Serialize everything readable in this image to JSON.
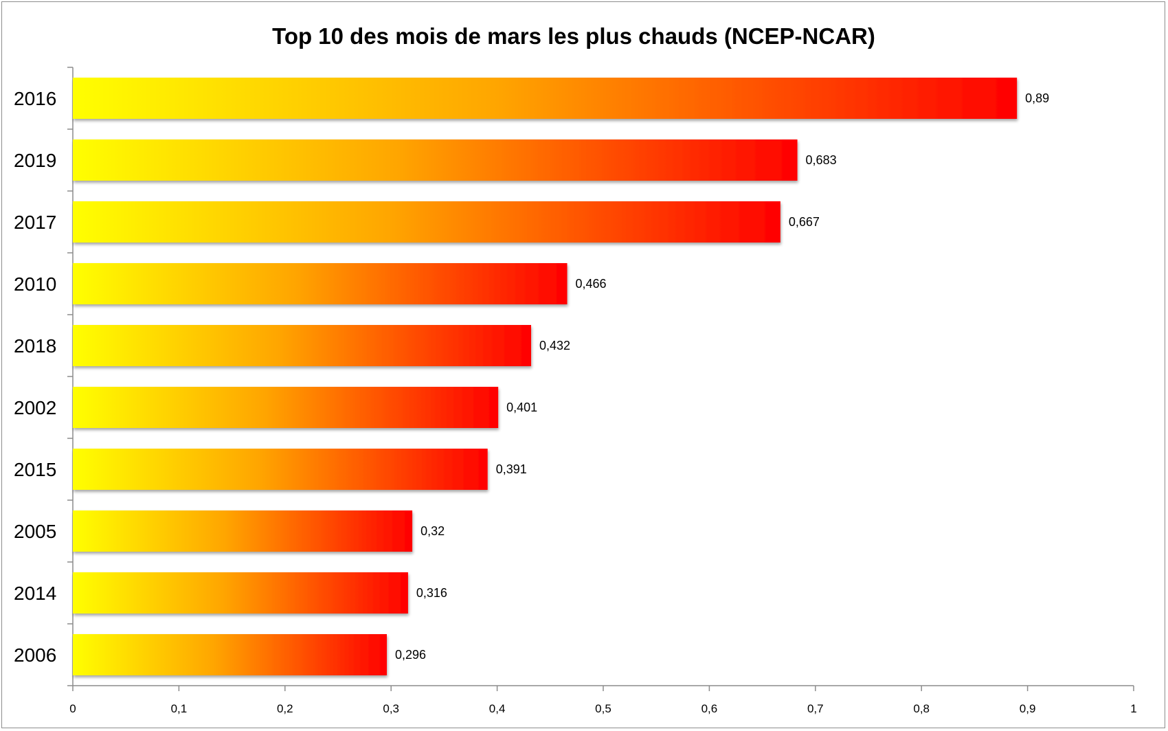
{
  "chart_data": {
    "type": "bar",
    "orientation": "horizontal",
    "title": "Top 10 des mois de mars les plus chauds (NCEP-NCAR)",
    "xlabel": "",
    "ylabel": "",
    "categories": [
      "2016",
      "2019",
      "2017",
      "2010",
      "2018",
      "2002",
      "2015",
      "2005",
      "2014",
      "2006"
    ],
    "values": [
      0.89,
      0.683,
      0.667,
      0.466,
      0.432,
      0.401,
      0.391,
      0.32,
      0.316,
      0.296
    ],
    "value_labels": [
      "0,89",
      "0,683",
      "0,667",
      "0,466",
      "0,432",
      "0,401",
      "0,391",
      "0,32",
      "0,316",
      "0,296"
    ],
    "xlim": [
      0,
      1
    ],
    "x_ticks": [
      0,
      0.1,
      0.2,
      0.3,
      0.4,
      0.5,
      0.6,
      0.7,
      0.8,
      0.9,
      1
    ],
    "x_tick_labels": [
      "0",
      "0,1",
      "0,2",
      "0,3",
      "0,4",
      "0,5",
      "0,6",
      "0,7",
      "0,8",
      "0,9",
      "1"
    ],
    "grid": false,
    "legend": "none",
    "colors": {
      "gradient_start": "#ffff00",
      "gradient_mid": "#ffa500",
      "gradient_end": "#ff0000",
      "axis": "#8c8c8c"
    }
  }
}
